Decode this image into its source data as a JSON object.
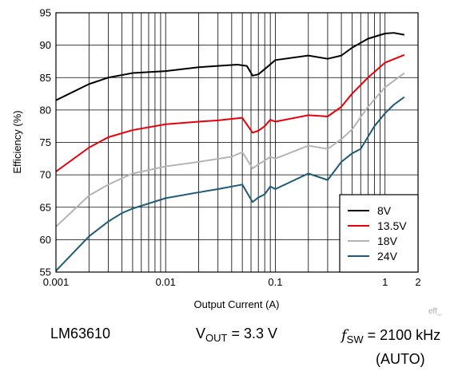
{
  "chart_data": {
    "type": "line",
    "xlabel": "Output Current (A)",
    "ylabel": "Efficiency (%)",
    "xscale": "log",
    "xlim": [
      0.001,
      2
    ],
    "ylim": [
      55,
      95
    ],
    "x_ticks": [
      0.001,
      0.01,
      0.1,
      1,
      2
    ],
    "x_tick_labels": [
      "0.001",
      "0.01",
      "0.1",
      "1",
      "2"
    ],
    "y_ticks": [
      55,
      60,
      65,
      70,
      75,
      80,
      85,
      90,
      95
    ],
    "y_tick_labels": [
      "55",
      "60",
      "65",
      "70",
      "75",
      "80",
      "85",
      "90",
      "95"
    ],
    "grid": true,
    "legend_position": "bottom-right",
    "series": [
      {
        "name": "8V",
        "color": "#000000",
        "x": [
          0.001,
          0.002,
          0.003,
          0.005,
          0.01,
          0.02,
          0.045,
          0.055,
          0.062,
          0.07,
          0.08,
          0.1,
          0.2,
          0.3,
          0.4,
          0.5,
          0.7,
          1.0,
          1.2,
          1.5
        ],
        "y": [
          81.5,
          84.0,
          85.0,
          85.7,
          86.0,
          86.6,
          87.0,
          86.8,
          85.3,
          85.5,
          86.3,
          87.7,
          88.4,
          87.9,
          88.4,
          89.6,
          91.0,
          91.8,
          91.9,
          91.6
        ]
      },
      {
        "name": "13.5V",
        "color": "#e8000b",
        "x": [
          0.001,
          0.002,
          0.003,
          0.005,
          0.01,
          0.02,
          0.03,
          0.05,
          0.062,
          0.07,
          0.08,
          0.09,
          0.1,
          0.2,
          0.3,
          0.4,
          0.5,
          0.7,
          1.0,
          1.5
        ],
        "y": [
          70.5,
          74.2,
          75.8,
          76.9,
          77.8,
          78.2,
          78.4,
          78.8,
          76.5,
          76.8,
          77.5,
          78.5,
          78.2,
          79.2,
          79.0,
          80.5,
          82.5,
          85.0,
          87.3,
          88.5
        ]
      },
      {
        "name": "18V",
        "color": "#b4b4b4",
        "x": [
          0.001,
          0.002,
          0.003,
          0.005,
          0.01,
          0.02,
          0.04,
          0.05,
          0.062,
          0.07,
          0.08,
          0.09,
          0.1,
          0.2,
          0.3,
          0.4,
          0.5,
          0.7,
          1.0,
          1.5
        ],
        "y": [
          62.0,
          66.8,
          68.5,
          70.2,
          71.3,
          72.0,
          72.8,
          73.5,
          71.0,
          71.6,
          72.2,
          72.8,
          72.5,
          74.5,
          74.0,
          75.5,
          77.0,
          80.5,
          83.5,
          85.7
        ]
      },
      {
        "name": "24V",
        "color": "#1f5a78",
        "x": [
          0.001,
          0.002,
          0.003,
          0.004,
          0.005,
          0.01,
          0.02,
          0.03,
          0.05,
          0.062,
          0.07,
          0.08,
          0.09,
          0.1,
          0.2,
          0.3,
          0.4,
          0.5,
          0.6,
          0.8,
          1.0,
          1.2,
          1.5
        ],
        "y": [
          55.2,
          60.5,
          62.8,
          64.1,
          64.8,
          66.4,
          67.3,
          67.8,
          68.5,
          65.8,
          66.5,
          67.0,
          68.2,
          67.8,
          70.2,
          69.2,
          72.0,
          73.3,
          74.0,
          77.5,
          79.5,
          80.8,
          82.0
        ]
      }
    ]
  },
  "watermark": "eff_",
  "captions": {
    "device": "LM63610",
    "vout_label": "V",
    "vout_sub": "OUT",
    "vout_value": " = 3.3 V",
    "fsw_label": "f",
    "fsw_sub": "SW",
    "fsw_value": " = 2100 kHz",
    "mode": "(AUTO)"
  }
}
